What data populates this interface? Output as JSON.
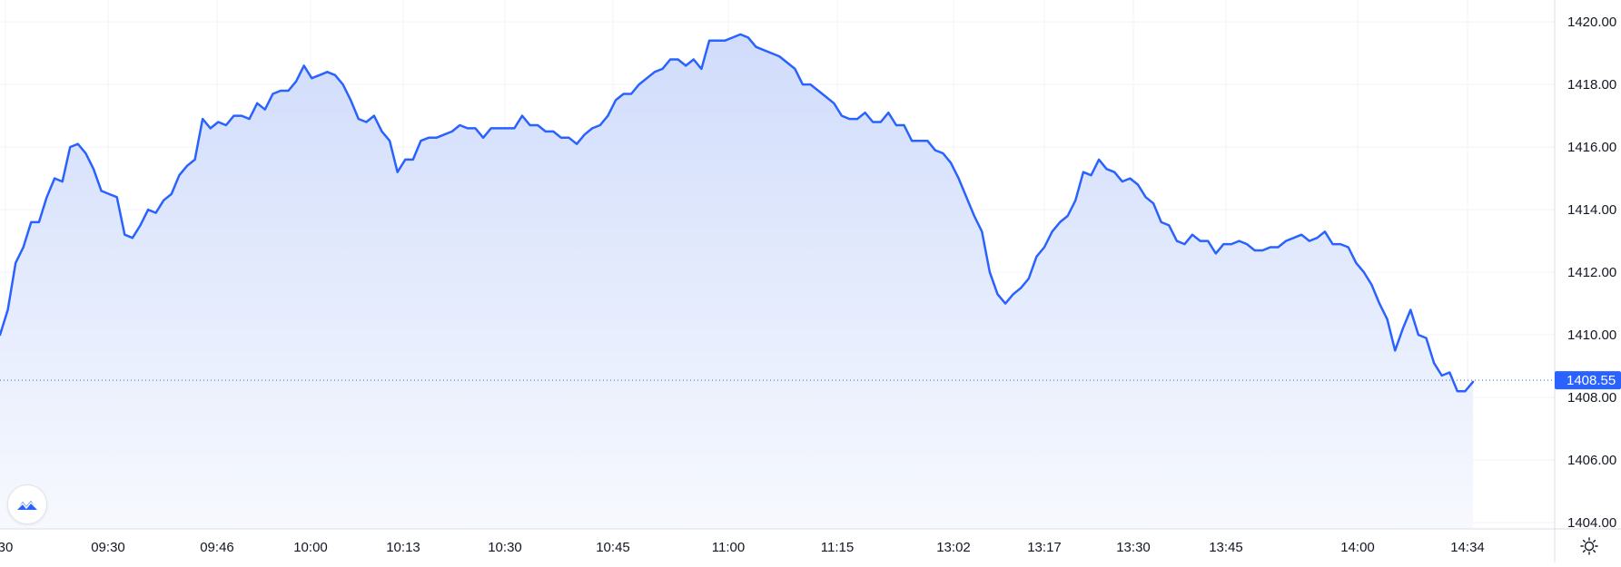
{
  "chart_data": {
    "type": "area",
    "title": "",
    "xlabel": "",
    "ylabel": "",
    "ylim": [
      1403.8,
      1420.7
    ],
    "y_ticks": [
      "1404.00",
      "1406.00",
      "1408.00",
      "1410.00",
      "1412.00",
      "1414.00",
      "1416.00",
      "1418.00",
      "1420.00"
    ],
    "x_ticks": [
      "30",
      "09:30",
      "09:46",
      "10:00",
      "10:13",
      "10:30",
      "10:45",
      "11:00",
      "11:15",
      "13:02",
      "13:17",
      "13:30",
      "13:45",
      "14:00",
      "14:34"
    ],
    "grid": true,
    "last_price": 1408.55,
    "last_price_label": "1408.55",
    "series": [
      {
        "values": [
          1410.0,
          1410.8,
          1412.3,
          1412.8,
          1413.6,
          1413.6,
          1414.4,
          1415.0,
          1414.9,
          1416.0,
          1416.1,
          1415.8,
          1415.3,
          1414.6,
          1414.5,
          1414.4,
          1413.2,
          1413.1,
          1413.5,
          1414.0,
          1413.9,
          1414.3,
          1414.5,
          1415.1,
          1415.4,
          1415.6,
          1416.9,
          1416.6,
          1416.8,
          1416.7,
          1417.0,
          1417.0,
          1416.9,
          1417.4,
          1417.2,
          1417.7,
          1417.8,
          1417.8,
          1418.1,
          1418.6,
          1418.2,
          1418.3,
          1418.4,
          1418.3,
          1418.0,
          1417.5,
          1416.9,
          1416.8,
          1417.0,
          1416.5,
          1416.2,
          1415.2,
          1415.6,
          1415.6,
          1416.2,
          1416.3,
          1416.3,
          1416.4,
          1416.5,
          1416.7,
          1416.6,
          1416.6,
          1416.3,
          1416.6,
          1416.6,
          1416.6,
          1416.6,
          1417.0,
          1416.7,
          1416.7,
          1416.5,
          1416.5,
          1416.3,
          1416.3,
          1416.1,
          1416.4,
          1416.6,
          1416.7,
          1417.0,
          1417.5,
          1417.7,
          1417.7,
          1418.0,
          1418.2,
          1418.4,
          1418.5,
          1418.8,
          1418.8,
          1418.6,
          1418.8,
          1418.5,
          1419.4,
          1419.4,
          1419.4,
          1419.5,
          1419.6,
          1419.5,
          1419.2,
          1419.1,
          1419.0,
          1418.9,
          1418.7,
          1418.5,
          1418.0,
          1418.0,
          1417.8,
          1417.6,
          1417.4,
          1417.0,
          1416.9,
          1416.9,
          1417.1,
          1416.8,
          1416.8,
          1417.1,
          1416.7,
          1416.7,
          1416.2,
          1416.2,
          1416.2,
          1415.9,
          1415.8,
          1415.5,
          1415.0,
          1414.4,
          1413.8,
          1413.3,
          1412.0,
          1411.3,
          1411.0,
          1411.3,
          1411.5,
          1411.8,
          1412.5,
          1412.8,
          1413.3,
          1413.6,
          1413.8,
          1414.3,
          1415.2,
          1415.1,
          1415.6,
          1415.3,
          1415.2,
          1414.9,
          1415.0,
          1414.8,
          1414.4,
          1414.2,
          1413.6,
          1413.5,
          1413.0,
          1412.9,
          1413.2,
          1413.0,
          1413.0,
          1412.6,
          1412.9,
          1412.9,
          1413.0,
          1412.9,
          1412.7,
          1412.7,
          1412.8,
          1412.8,
          1413.0,
          1413.1,
          1413.2,
          1413.0,
          1413.1,
          1413.3,
          1412.9,
          1412.9,
          1412.8,
          1412.3,
          1412.0,
          1411.6,
          1411.0,
          1410.5,
          1409.5,
          1410.2,
          1410.8,
          1410.0,
          1409.9,
          1409.1,
          1408.7,
          1408.8,
          1408.2,
          1408.2,
          1408.5
        ]
      }
    ],
    "colors": {
      "line": "#2962ff",
      "area_top": "#d0dcfb",
      "area_bottom": "#f7f9fe",
      "grid": "#f0f3fa",
      "price_label_bg": "#2962ff",
      "price_label_text": "#ffffff"
    }
  },
  "controls": {
    "logo_icon": "tradingview-mountain-icon",
    "settings_icon": "sun-gear-icon"
  }
}
